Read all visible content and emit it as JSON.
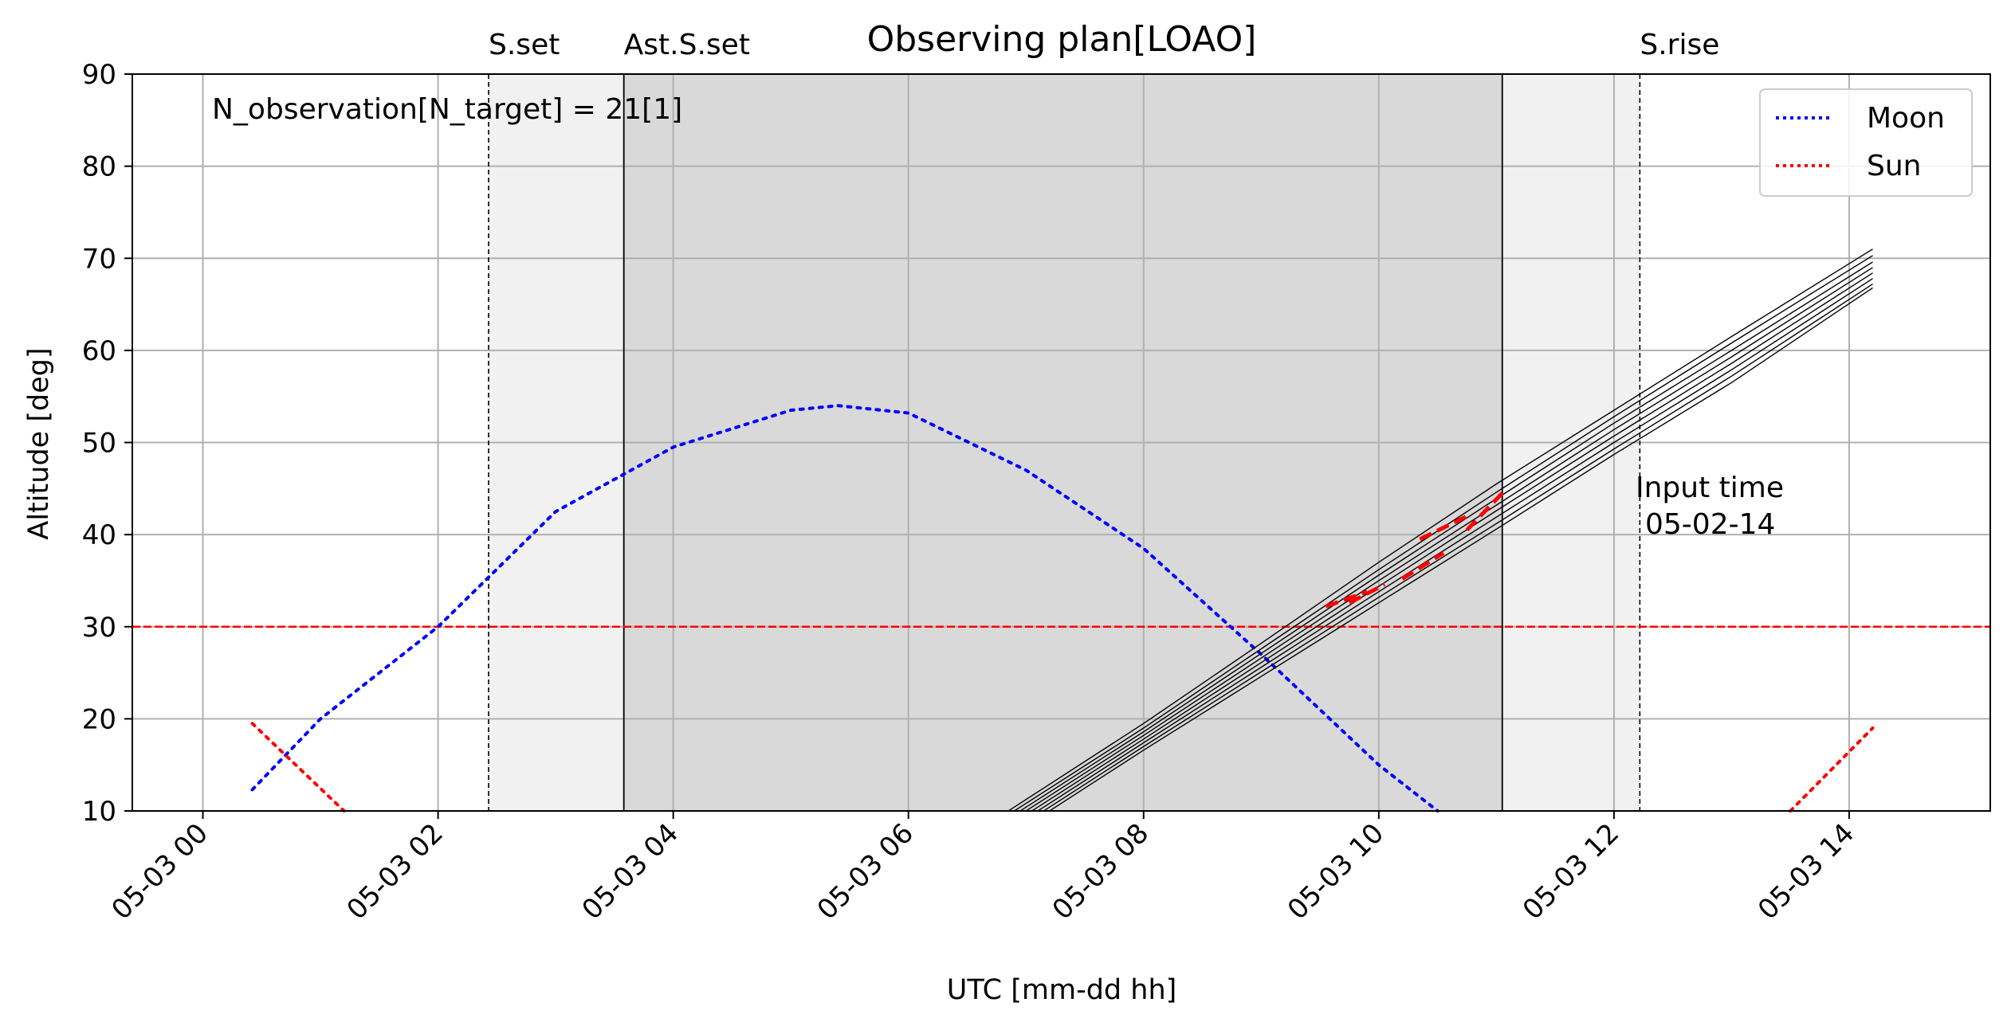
{
  "chart_data": {
    "type": "line",
    "title": "Observing plan[LOAO]",
    "xlabel": "UTC [mm-dd hh]",
    "ylabel": "Altitude [deg]",
    "xlim": [
      -0.6,
      15.2
    ],
    "ylim": [
      10,
      90
    ],
    "x_unit": "hours after 05-03 00:00 UTC",
    "grid": true,
    "legend_position": "top-right",
    "x_ticks": [
      {
        "value": 0,
        "label": "05-03 00"
      },
      {
        "value": 2,
        "label": "05-03 02"
      },
      {
        "value": 4,
        "label": "05-03 04"
      },
      {
        "value": 6,
        "label": "05-03 06"
      },
      {
        "value": 8,
        "label": "05-03 08"
      },
      {
        "value": 10,
        "label": "05-03 10"
      },
      {
        "value": 12,
        "label": "05-03 12"
      },
      {
        "value": 14,
        "label": "05-03 14"
      }
    ],
    "y_ticks": [
      {
        "value": 10,
        "label": "10"
      },
      {
        "value": 20,
        "label": "20"
      },
      {
        "value": 30,
        "label": "30"
      },
      {
        "value": 40,
        "label": "40"
      },
      {
        "value": 50,
        "label": "50"
      },
      {
        "value": 60,
        "label": "60"
      },
      {
        "value": 70,
        "label": "70"
      },
      {
        "value": 80,
        "label": "80"
      },
      {
        "value": 90,
        "label": "90"
      }
    ],
    "events": [
      {
        "label": "S.set",
        "x": 2.43,
        "style": "dashed"
      },
      {
        "label": "Ast.S.set",
        "x": 3.58,
        "style": "solid"
      },
      {
        "label": "",
        "x": 11.05,
        "style": "solid"
      },
      {
        "label": "S.rise",
        "x": 12.22,
        "style": "dashed"
      }
    ],
    "shaded_regions": [
      {
        "x0": 2.43,
        "x1": 3.58,
        "color": "#f1f1f1"
      },
      {
        "x0": 3.58,
        "x1": 11.05,
        "color": "#d9d9d9"
      },
      {
        "x0": 11.05,
        "x1": 12.22,
        "color": "#f1f1f1"
      }
    ],
    "altitude_limit": {
      "y": 30,
      "color": "#ff0000",
      "style": "dashed"
    },
    "annotations": {
      "count": "N_observation[N_target] = 21[1]",
      "input_time_line1": "Input time",
      "input_time_line2": "05-02-14"
    },
    "series": [
      {
        "name": "Moon",
        "color": "#0000ff",
        "style": "dotted",
        "x": [
          0.42,
          1.0,
          2.0,
          3.0,
          4.0,
          5.0,
          5.4,
          6.0,
          7.0,
          8.0,
          9.0,
          10.0,
          10.5
        ],
        "y": [
          12.3,
          20.0,
          30.0,
          42.5,
          49.5,
          53.5,
          54.0,
          53.2,
          47.0,
          38.5,
          27.0,
          15.0,
          10.0
        ]
      },
      {
        "name": "Sun",
        "color": "#ff0000",
        "style": "dotted",
        "segments": [
          {
            "x": [
              0.42,
              1.2
            ],
            "y": [
              19.5,
              10.0
            ]
          },
          {
            "x": [
              13.5,
              14.2
            ],
            "y": [
              10.0,
              19.0
            ]
          }
        ]
      }
    ],
    "target_tracks": {
      "color": "#000000",
      "tracks": [
        {
          "x": [
            6.85,
            8.0,
            9.0,
            10.0,
            11.0,
            12.0,
            13.0,
            14.2
          ],
          "y": [
            10.0,
            19.5,
            28.2,
            37.0,
            45.5,
            53.5,
            61.5,
            71.0
          ]
        },
        {
          "x": [
            6.9,
            8.0,
            9.0,
            10.0,
            11.0,
            12.0,
            13.0,
            14.2
          ],
          "y": [
            10.0,
            19.0,
            27.6,
            36.2,
            44.6,
            52.8,
            60.8,
            70.3
          ]
        },
        {
          "x": [
            6.95,
            8.0,
            9.0,
            10.0,
            11.0,
            12.0,
            13.0,
            14.2
          ],
          "y": [
            10.0,
            18.6,
            27.1,
            35.6,
            43.9,
            52.1,
            60.0,
            69.6
          ]
        },
        {
          "x": [
            7.0,
            8.0,
            9.0,
            10.0,
            11.0,
            12.0,
            13.0,
            14.2
          ],
          "y": [
            10.0,
            18.2,
            26.6,
            35.0,
            43.2,
            51.4,
            59.3,
            69.0
          ]
        },
        {
          "x": [
            7.05,
            8.0,
            9.0,
            10.0,
            11.0,
            12.0,
            13.0,
            14.2
          ],
          "y": [
            10.0,
            17.8,
            26.1,
            34.4,
            42.6,
            50.7,
            58.6,
            68.4
          ]
        },
        {
          "x": [
            7.1,
            8.0,
            9.0,
            10.0,
            11.0,
            12.0,
            13.0,
            14.2
          ],
          "y": [
            10.0,
            17.4,
            25.6,
            33.8,
            41.9,
            50.0,
            57.9,
            67.8
          ]
        },
        {
          "x": [
            7.15,
            8.0,
            9.0,
            10.0,
            11.0,
            12.0,
            13.0,
            14.2
          ],
          "y": [
            10.0,
            17.0,
            25.1,
            33.2,
            41.2,
            49.3,
            57.2,
            67.2
          ]
        },
        {
          "x": [
            7.2,
            8.0,
            9.0,
            10.0,
            11.0,
            12.0,
            13.0,
            14.2
          ],
          "y": [
            10.0,
            16.6,
            24.6,
            32.6,
            40.6,
            48.7,
            56.5,
            66.8
          ]
        }
      ]
    },
    "observation_segments": {
      "color": "#ff0000",
      "style": "dashed",
      "segments": [
        {
          "x": [
            9.55,
            9.9
          ],
          "y": [
            32.2,
            33.8
          ]
        },
        {
          "x": [
            9.75,
            10.05
          ],
          "y": [
            32.6,
            34.6
          ]
        },
        {
          "x": [
            10.2,
            10.55
          ],
          "y": [
            35.2,
            38.0
          ]
        },
        {
          "x": [
            10.35,
            10.75
          ],
          "y": [
            39.5,
            42.0
          ]
        },
        {
          "x": [
            10.75,
            11.05
          ],
          "y": [
            40.5,
            44.5
          ]
        }
      ]
    }
  }
}
